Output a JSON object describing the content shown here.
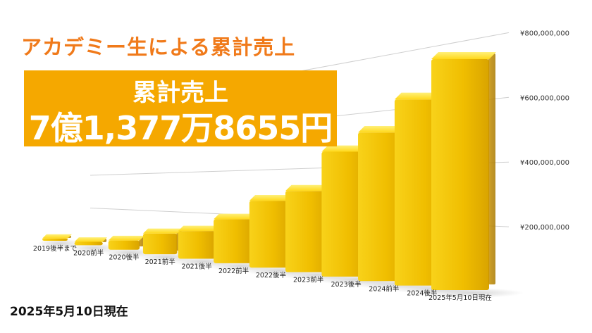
{
  "title": "アカデミー生による累計売上",
  "banner": {
    "label": "累計売上",
    "value": "7億1,377万8655円"
  },
  "as_of": "2025年5月10日現在",
  "colors": {
    "title": "#f07a1a",
    "banner": "#f5a800",
    "bar_front": "#f2c200",
    "bar_top": "#ffe23a"
  },
  "chart_data": {
    "type": "bar",
    "categories": [
      "2019後半まで",
      "2020前半",
      "2020後半",
      "2021前半",
      "2021後半",
      "2022前半",
      "2022後半",
      "2023前半",
      "2023後半",
      "2024前半",
      "2024後半",
      "2025年5月10日現在"
    ],
    "values": [
      13000000,
      18000000,
      45000000,
      95000000,
      120000000,
      180000000,
      260000000,
      300000000,
      440000000,
      500000000,
      600000000,
      713778655
    ],
    "yticks": [
      "¥200,000,000",
      "¥400,000,000",
      "¥600,000,000",
      "¥800,000,000"
    ],
    "ylim": [
      0,
      800000000
    ],
    "grid": true
  }
}
